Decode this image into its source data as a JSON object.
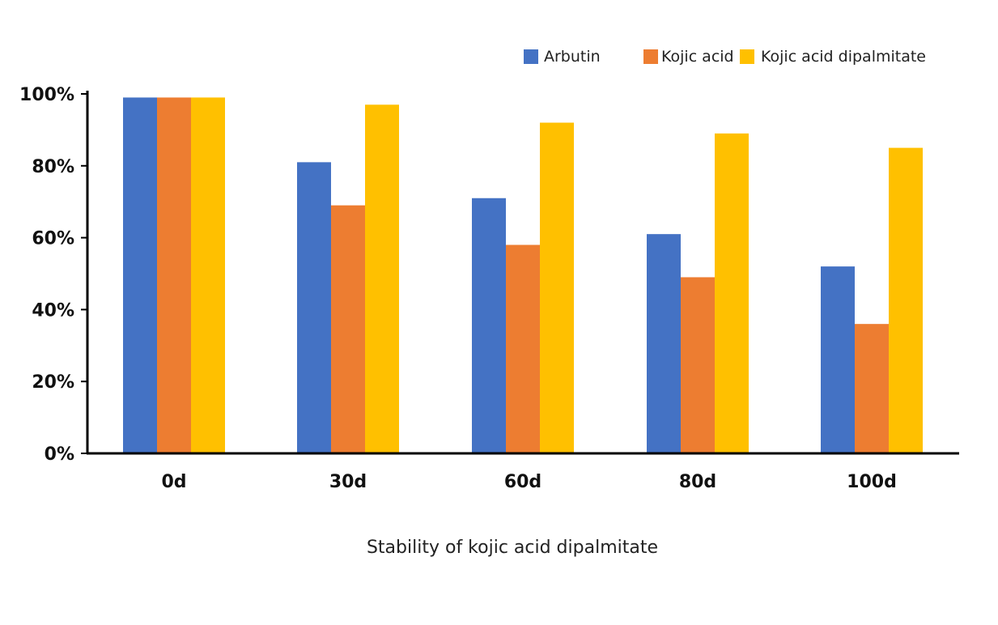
{
  "chart_data": {
    "type": "bar",
    "title": "",
    "xlabel": "Stability of kojic acid dipalmitate",
    "ylabel": "",
    "categories": [
      "0d",
      "30d",
      "60d",
      "80d",
      "100d"
    ],
    "ylim": [
      0,
      100
    ],
    "yticks": [
      0,
      20,
      40,
      60,
      80,
      100
    ],
    "ytick_labels": [
      "0%",
      "20%",
      "40%",
      "60%",
      "80%",
      "100%"
    ],
    "grid": false,
    "legend_position": "top-right",
    "series": [
      {
        "name": "Arbutin",
        "color": "#4472C4",
        "values": [
          99,
          81,
          71,
          61,
          52
        ]
      },
      {
        "name": "Kojic acid",
        "color": "#ED7D31",
        "values": [
          99,
          69,
          58,
          49,
          36
        ]
      },
      {
        "name": "Kojic acid dipalmitate",
        "color": "#FFC000",
        "values": [
          99,
          97,
          92,
          89,
          85
        ]
      }
    ]
  }
}
